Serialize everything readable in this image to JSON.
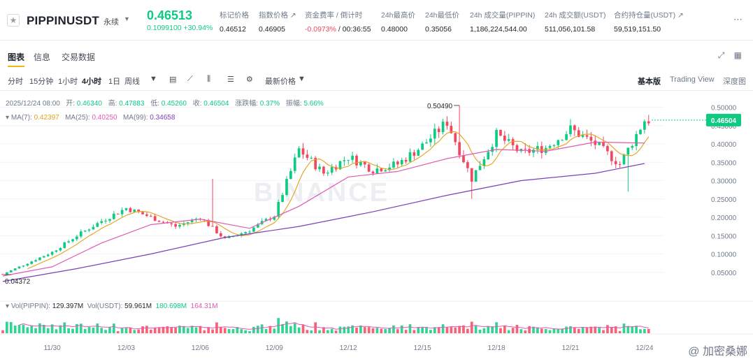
{
  "header": {
    "symbol": "PIPPINUSDT",
    "contract_type": "永续",
    "last_price": "0.46513",
    "price_change": "0.1099100 +30.94%",
    "stats": [
      {
        "label": "标记价格",
        "value": "0.46512",
        "value_color": "normal"
      },
      {
        "label": "指数价格 ↗",
        "value": "0.46905",
        "value_color": "normal"
      },
      {
        "label": "资金费率 / 倒计时",
        "value": "-0.0973%",
        "value2": "/ 00:36:55",
        "value_color": "red"
      },
      {
        "label": "24h最高价",
        "value": "0.48000",
        "value_color": "normal"
      },
      {
        "label": "24h最低价",
        "value": "0.35056",
        "value_color": "normal"
      },
      {
        "label": "24h 成交量(PIPPIN)",
        "value": "1,186,224,544.00",
        "value_color": "normal"
      },
      {
        "label": "24h 成交额(USDT)",
        "value": "511,056,101.58",
        "value_color": "normal"
      },
      {
        "label": "合约持仓量(USDT) ↗",
        "value": "59,519,151.50",
        "value_color": "normal"
      }
    ],
    "more_icon": "ellipsis-icon"
  },
  "tabs": {
    "items": [
      "图表",
      "信息",
      "交易数据"
    ],
    "active": "图表"
  },
  "toolbar": {
    "intervals": [
      "分时",
      "15分钟",
      "1小时",
      "4小时",
      "1日",
      "周线"
    ],
    "active_interval": "4小时",
    "price_type": "最新价格",
    "views": [
      "基本版",
      "Trading View",
      "深度图"
    ],
    "active_view": "基本版"
  },
  "chart_data": {
    "type": "candlestick",
    "symbol": "PIPPINUSDT",
    "interval": "4小时",
    "ohlc_header": {
      "date": "2025/12/24 08:00",
      "open_label": "开:",
      "open": "0.46340",
      "high_label": "高:",
      "high": "0.47883",
      "low_label": "低:",
      "low": "0.45260",
      "close_label": "收:",
      "close": "0.46504",
      "change_label": "涨跌幅:",
      "change": "0.37%",
      "amplitude_label": "振幅:",
      "amplitude": "5.66%"
    },
    "ma_legend": [
      {
        "name": "MA(7):",
        "value": "0.42397",
        "color": "#e4a11b"
      },
      {
        "name": "MA(25):",
        "value": "0.40250",
        "color": "#e15ab4"
      },
      {
        "name": "MA(99):",
        "value": "0.34658",
        "color": "#7b3fb8"
      }
    ],
    "vol_legend": {
      "label": "Vol(PIPPIN):",
      "vol": "129.397M",
      "usdt_label": "Vol(USDT):",
      "usdt": "59.961M",
      "ma1": "180.698M",
      "ma2": "164.31M"
    },
    "y_ticks": [
      "0.50000",
      "0.45000",
      "0.40000",
      "0.35000",
      "0.30000",
      "0.25000",
      "0.20000",
      "0.15000",
      "0.10000",
      "0.05000"
    ],
    "y_range": [
      0.0,
      0.52
    ],
    "x_ticks": [
      "11/30",
      "12/03",
      "12/06",
      "12/09",
      "12/12",
      "12/15",
      "12/18",
      "12/21",
      "12/24"
    ],
    "x_range": [
      "11/28",
      "12/24"
    ],
    "last_price_label": "0.46504",
    "high_marker": "0.50490",
    "low_marker": "0.04372",
    "watermark_text": "BINANCE",
    "ma_colors": {
      "ma7": "#e4a11b",
      "ma25": "#e15ab4",
      "ma99": "#7b3fb8"
    },
    "up_color": "#0ecb81",
    "down_color": "#f6465d",
    "close_path": [
      [
        "11/28",
        0.045
      ],
      [
        "11/29",
        0.075
      ],
      [
        "11/30",
        0.105
      ],
      [
        "12/01",
        0.15
      ],
      [
        "12/02",
        0.19
      ],
      [
        "12/03",
        0.225
      ],
      [
        "12/04",
        0.2
      ],
      [
        "12/05",
        0.175
      ],
      [
        "12/06",
        0.2
      ],
      [
        "12/07",
        0.14
      ],
      [
        "12/08",
        0.165
      ],
      [
        "12/09",
        0.205
      ],
      [
        "12/10",
        0.385
      ],
      [
        "12/11",
        0.32
      ],
      [
        "12/12",
        0.365
      ],
      [
        "12/13",
        0.33
      ],
      [
        "12/14",
        0.345
      ],
      [
        "12/15",
        0.395
      ],
      [
        "12/16",
        0.46
      ],
      [
        "12/17",
        0.305
      ],
      [
        "12/18",
        0.425
      ],
      [
        "12/19",
        0.375
      ],
      [
        "12/20",
        0.39
      ],
      [
        "12/21",
        0.44
      ],
      [
        "12/22",
        0.4
      ],
      [
        "12/23",
        0.345
      ],
      [
        "12/24",
        0.465
      ]
    ],
    "ma25_path": [
      [
        "11/28",
        0.04
      ],
      [
        "11/30",
        0.065
      ],
      [
        "12/02",
        0.13
      ],
      [
        "12/04",
        0.18
      ],
      [
        "12/06",
        0.195
      ],
      [
        "12/08",
        0.17
      ],
      [
        "12/10",
        0.23
      ],
      [
        "12/12",
        0.31
      ],
      [
        "12/14",
        0.325
      ],
      [
        "12/16",
        0.36
      ],
      [
        "12/18",
        0.385
      ],
      [
        "12/20",
        0.38
      ],
      [
        "12/22",
        0.405
      ],
      [
        "12/24",
        0.4025
      ]
    ],
    "ma99_path": [
      [
        "11/28",
        0.025
      ],
      [
        "12/01",
        0.06
      ],
      [
        "12/04",
        0.1
      ],
      [
        "12/07",
        0.145
      ],
      [
        "12/10",
        0.175
      ],
      [
        "12/13",
        0.215
      ],
      [
        "12/16",
        0.26
      ],
      [
        "12/19",
        0.3
      ],
      [
        "12/22",
        0.32
      ],
      [
        "12/24",
        0.3466
      ]
    ]
  },
  "watermark": "@ 加密桑娜"
}
